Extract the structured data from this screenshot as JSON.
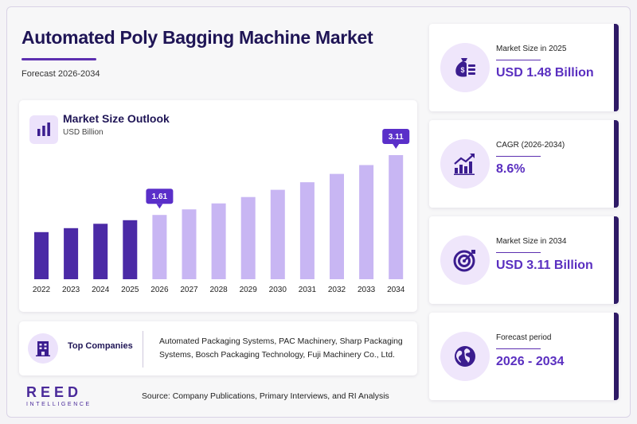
{
  "header": {
    "title": "Automated Poly Bagging Machine Market",
    "subtitle": "Forecast 2026-2034"
  },
  "chart_card": {
    "title": "Market Size Outlook",
    "unit": "USD Billion"
  },
  "chart_data": {
    "type": "bar",
    "categories": [
      "2022",
      "2023",
      "2024",
      "2025",
      "2026",
      "2027",
      "2028",
      "2029",
      "2030",
      "2031",
      "2032",
      "2033",
      "2034"
    ],
    "values": [
      1.18,
      1.28,
      1.39,
      1.48,
      1.61,
      1.75,
      1.9,
      2.06,
      2.24,
      2.43,
      2.64,
      2.86,
      3.11
    ],
    "historical_color": "#4b2aa6",
    "forecast_color": "#c8b6f3",
    "forecast_start": "2026",
    "annotations": [
      {
        "category": "2026",
        "label": "1.61"
      },
      {
        "category": "2034",
        "label": "3.11"
      }
    ],
    "ylim": [
      0,
      3.11
    ],
    "grid": false
  },
  "companies": {
    "label": "Top Companies",
    "text": "Automated Packaging Systems, PAC Machinery, Sharp Packaging Systems, Bosch Packaging Technology, Fuji Machinery Co., Ltd."
  },
  "footer": {
    "source": "Source: Company Publications, Primary Interviews, and RI Analysis",
    "logo_main": "REED",
    "logo_sub": "INTELLIGENCE"
  },
  "stats": [
    {
      "label": "Market Size in 2025",
      "value": "USD 1.48 Billion",
      "icon": "money-bag-icon"
    },
    {
      "label": "CAGR (2026-2034)",
      "value": "8.6%",
      "icon": "growth-chart-icon"
    },
    {
      "label": "Market Size in 2034",
      "value": "USD 3.11 Billion",
      "icon": "target-icon"
    },
    {
      "label": "Forecast period",
      "value": "2026 - 2034",
      "icon": "globe-icon"
    }
  ],
  "colors": {
    "accent": "#5c2fb0",
    "title": "#1f1556",
    "stat_value": "#5a2fc0",
    "card_edge": "#2e1a66"
  }
}
